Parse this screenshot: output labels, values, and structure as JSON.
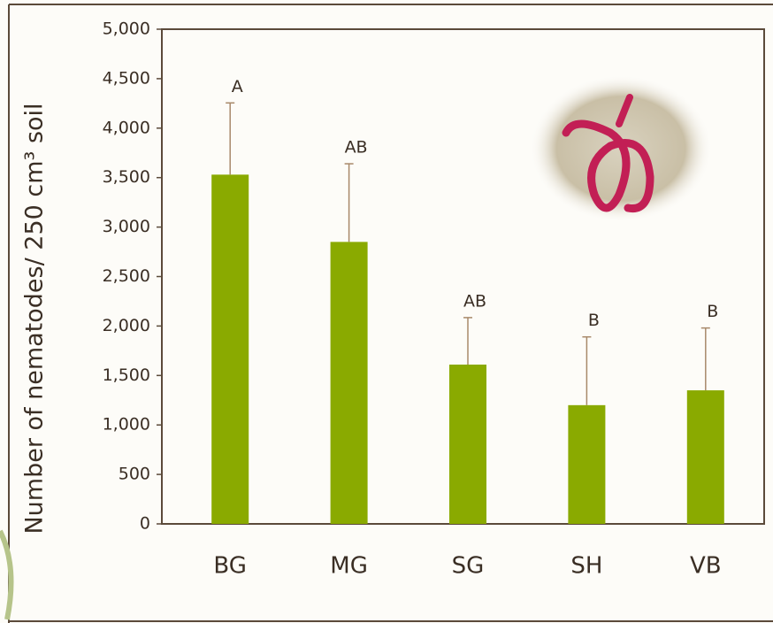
{
  "chart_data": {
    "type": "bar",
    "y_label": "Number of nematodes/ 250  cm³ soil",
    "categories": [
      "BG",
      "MG",
      "SG",
      "SH",
      "VB"
    ],
    "values": [
      3530,
      2850,
      1610,
      1200,
      1350
    ],
    "errors": [
      725,
      790,
      475,
      690,
      630
    ],
    "annotations": [
      "A",
      "AB",
      "AB",
      "B",
      "B"
    ],
    "color": "#8aaa00",
    "error_color": "#a8896a",
    "ylim": [
      0,
      5000
    ],
    "yticks": [
      0,
      500,
      {
        "value": 1000,
        "label": "1,000"
      },
      {
        "value": 1500,
        "label": "1,500"
      },
      {
        "value": 2000,
        "label": "2,000"
      },
      {
        "value": 2500,
        "label": "2,500"
      },
      {
        "value": 3000,
        "label": "3,000"
      },
      {
        "value": 3500,
        "label": "3,500"
      },
      {
        "value": 4000,
        "label": "4,000"
      },
      {
        "value": 4500,
        "label": "4,500"
      },
      {
        "value": 5000,
        "label": "5,000"
      }
    ]
  }
}
